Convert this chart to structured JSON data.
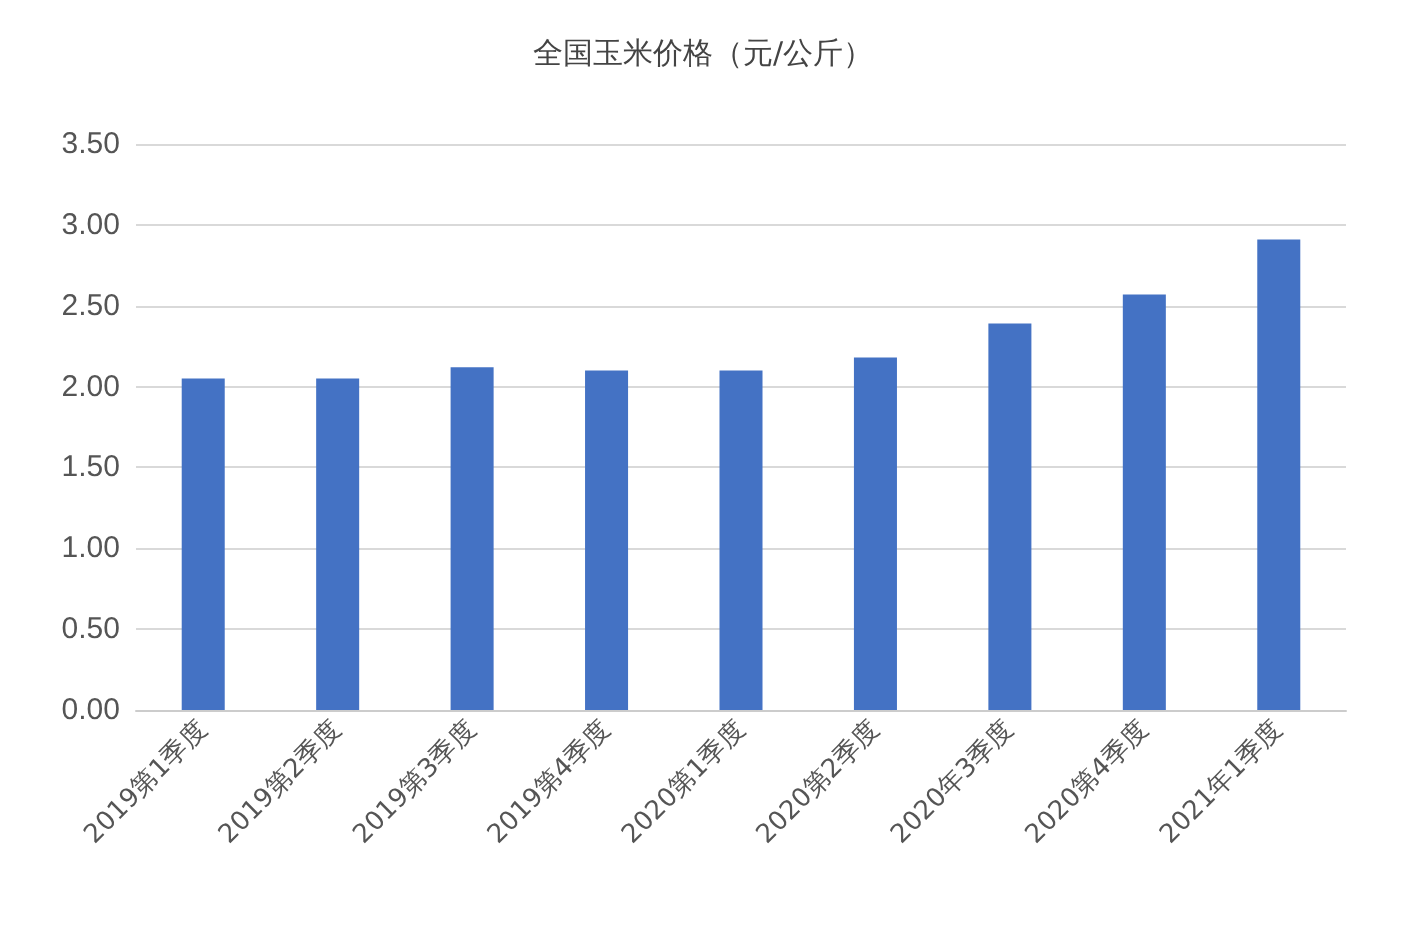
{
  "chart_data": {
    "type": "bar",
    "title": "全国玉米价格（元/公斤）",
    "categories": [
      "2019第1季度",
      "2019第2季度",
      "2019第3季度",
      "2019第4季度",
      "2020第1季度",
      "2020第2季度",
      "2020年3季度",
      "2020第4季度",
      "2021年1季度"
    ],
    "values": [
      2.05,
      2.05,
      2.12,
      2.1,
      2.1,
      2.18,
      2.39,
      2.57,
      2.91
    ],
    "color": "#4472c4",
    "ylim": [
      0,
      3.5
    ],
    "yticks": [
      {
        "value": 0,
        "label": "0.00"
      },
      {
        "value": 0.5,
        "label": "0.50"
      },
      {
        "value": 1,
        "label": "1.00"
      },
      {
        "value": 1.5,
        "label": "1.50"
      },
      {
        "value": 2,
        "label": "2.00"
      },
      {
        "value": 2.5,
        "label": "2.50"
      },
      {
        "value": 3,
        "label": "3.00"
      },
      {
        "value": 3.5,
        "label": "3.50"
      }
    ],
    "grid": "y"
  }
}
